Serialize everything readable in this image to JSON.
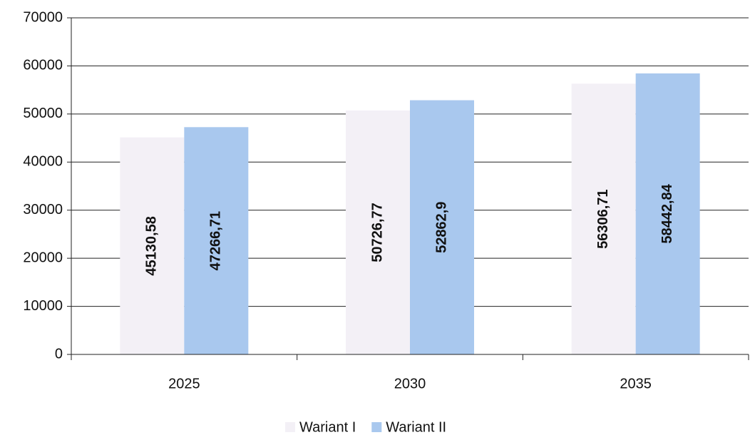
{
  "chart_data": {
    "type": "bar",
    "categories": [
      "2025",
      "2030",
      "2035"
    ],
    "series": [
      {
        "name": "Wariant I",
        "color": "#f3f0f6",
        "values": [
          45130.58,
          50726.77,
          56306.71
        ],
        "value_labels": [
          "45130,58",
          "50726,77",
          "56306,71"
        ]
      },
      {
        "name": "Wariant II",
        "color": "#a9c8ee",
        "values": [
          47266.71,
          52862.9,
          58442.84
        ],
        "value_labels": [
          "47266,71",
          "52862,9",
          "58442,84"
        ]
      }
    ],
    "ylim": [
      0,
      70000
    ],
    "yticks": [
      0,
      10000,
      20000,
      30000,
      40000,
      50000,
      60000,
      70000
    ],
    "grid": true,
    "legend": "bottom"
  }
}
